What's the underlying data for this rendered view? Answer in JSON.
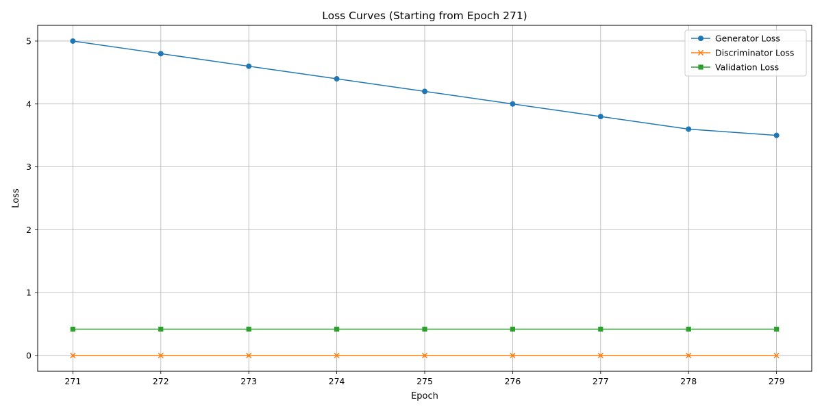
{
  "chart_data": {
    "type": "line",
    "title": "Loss Curves (Starting from Epoch 271)",
    "xlabel": "Epoch",
    "ylabel": "Loss",
    "x": [
      271,
      272,
      273,
      274,
      275,
      276,
      277,
      278,
      279
    ],
    "xticks": [
      "271",
      "272",
      "273",
      "274",
      "275",
      "276",
      "277",
      "278",
      "279"
    ],
    "yticks": [
      "0",
      "1",
      "2",
      "3",
      "4",
      "5"
    ],
    "xlim": [
      270.6,
      279.4
    ],
    "ylim": [
      -0.25,
      5.25
    ],
    "grid": true,
    "legend_position": "top-right",
    "series": [
      {
        "name": "Generator Loss",
        "values": [
          5.0,
          4.8,
          4.6,
          4.4,
          4.2,
          4.0,
          3.8,
          3.6,
          3.5
        ],
        "color": "#1f77b4",
        "marker": "circle"
      },
      {
        "name": "Discriminator Loss",
        "values": [
          0.0,
          0.0,
          0.0,
          0.0,
          0.0,
          0.0,
          0.0,
          0.0,
          0.0
        ],
        "color": "#ff7f0e",
        "marker": "x"
      },
      {
        "name": "Validation Loss",
        "values": [
          0.42,
          0.42,
          0.42,
          0.42,
          0.42,
          0.42,
          0.42,
          0.42,
          0.42
        ],
        "color": "#2ca02c",
        "marker": "square"
      }
    ]
  }
}
